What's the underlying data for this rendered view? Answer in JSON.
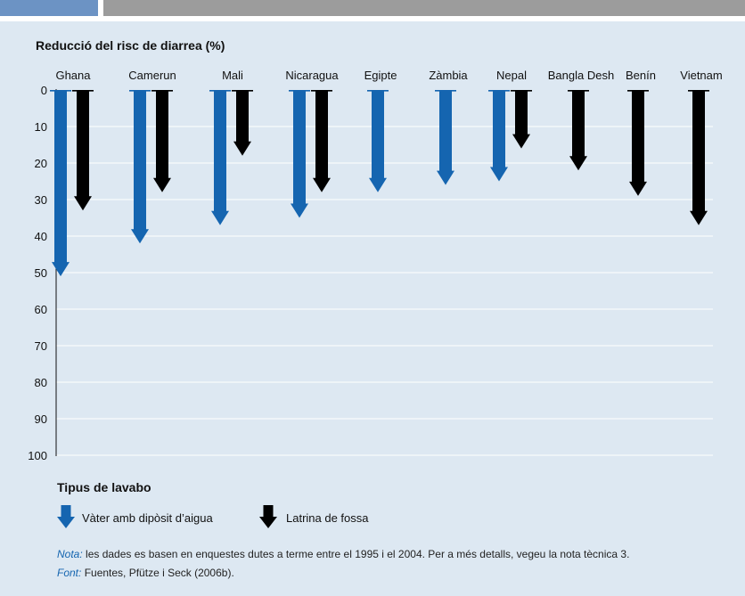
{
  "chart_data": {
    "type": "bar",
    "title": "Reducció del risc de diarrea (%)",
    "categories": [
      "Ghana",
      "Camerun",
      "Mali",
      "Nicaragua",
      "Egipte",
      "Zàmbia",
      "Nepal",
      "Bangla Desh",
      "Benín",
      "Vietnam"
    ],
    "ylim": [
      0,
      100
    ],
    "ytick_labels": [
      "0",
      "10",
      "20",
      "30",
      "40",
      "50",
      "60",
      "70",
      "80",
      "90",
      "100"
    ],
    "grid": true,
    "series": [
      {
        "name": "Vàter amb dipòsit d’aigua",
        "color": "#1565b0",
        "values": [
          51,
          42,
          37,
          35,
          28,
          26,
          25,
          null,
          null,
          null
        ]
      },
      {
        "name": "Latrina de fossa",
        "color": "#000000",
        "values": [
          33,
          28,
          18,
          28,
          null,
          null,
          16,
          22,
          29,
          37
        ]
      }
    ],
    "legend_title": "Tipus de lavabo",
    "legend_position": "bottom-left"
  },
  "notes": {
    "nota_label": "Nota:",
    "nota_text": " les dades es basen en enquestes dutes a terme entre el 1995 i el 2004. Per a més detalls, vegeu la nota tècnica 3.",
    "font_label": "Font:",
    "font_text": " Fuentes, Pfütze i Seck (2006b)."
  }
}
